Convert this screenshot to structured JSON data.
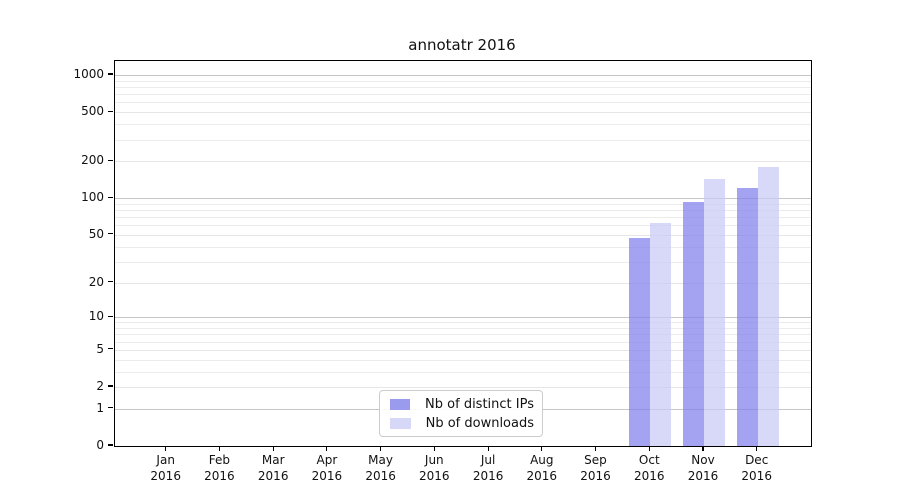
{
  "chart_data": {
    "type": "bar",
    "title": "annotatr 2016",
    "xlabel": "",
    "ylabel": "",
    "year": "2016",
    "categories": [
      "Jan",
      "Feb",
      "Mar",
      "Apr",
      "May",
      "Jun",
      "Jul",
      "Aug",
      "Sep",
      "Oct",
      "Nov",
      "Dec"
    ],
    "series": [
      {
        "name": "Nb of distinct IPs",
        "color": "rgba(128,128,235,0.72)",
        "legend_color": "#9a9aee",
        "values": [
          null,
          null,
          null,
          null,
          null,
          null,
          null,
          null,
          null,
          47,
          93,
          122
        ]
      },
      {
        "name": "Nb of downloads",
        "color": "rgba(201,201,246,0.72)",
        "legend_color": "#d7d7f7",
        "values": [
          null,
          null,
          null,
          null,
          null,
          null,
          null,
          null,
          null,
          63,
          143,
          180
        ]
      }
    ],
    "yscale": "log1p",
    "ylim": [
      0,
      1200
    ],
    "yticks": [
      0,
      1,
      2,
      5,
      10,
      20,
      50,
      100,
      200,
      500,
      1000
    ],
    "major_gridlines": [
      1,
      10,
      100,
      1000
    ],
    "labeled_minor_gridlines": [
      2,
      5,
      20,
      50,
      200,
      500
    ],
    "minor_gridlines": [
      3,
      4,
      6,
      7,
      8,
      9,
      30,
      40,
      60,
      70,
      80,
      90,
      300,
      400,
      600,
      700,
      800,
      900
    ],
    "grid": true,
    "legend_position": "lower center"
  },
  "colors": {
    "background": "#ffffff",
    "spine": "#000000",
    "major_grid": "#c6c6c6",
    "minor_grid": "#ececec",
    "labeled_minor_grid": "#e6e6e6",
    "legend_border": "#cccccc",
    "text": "#111111"
  }
}
